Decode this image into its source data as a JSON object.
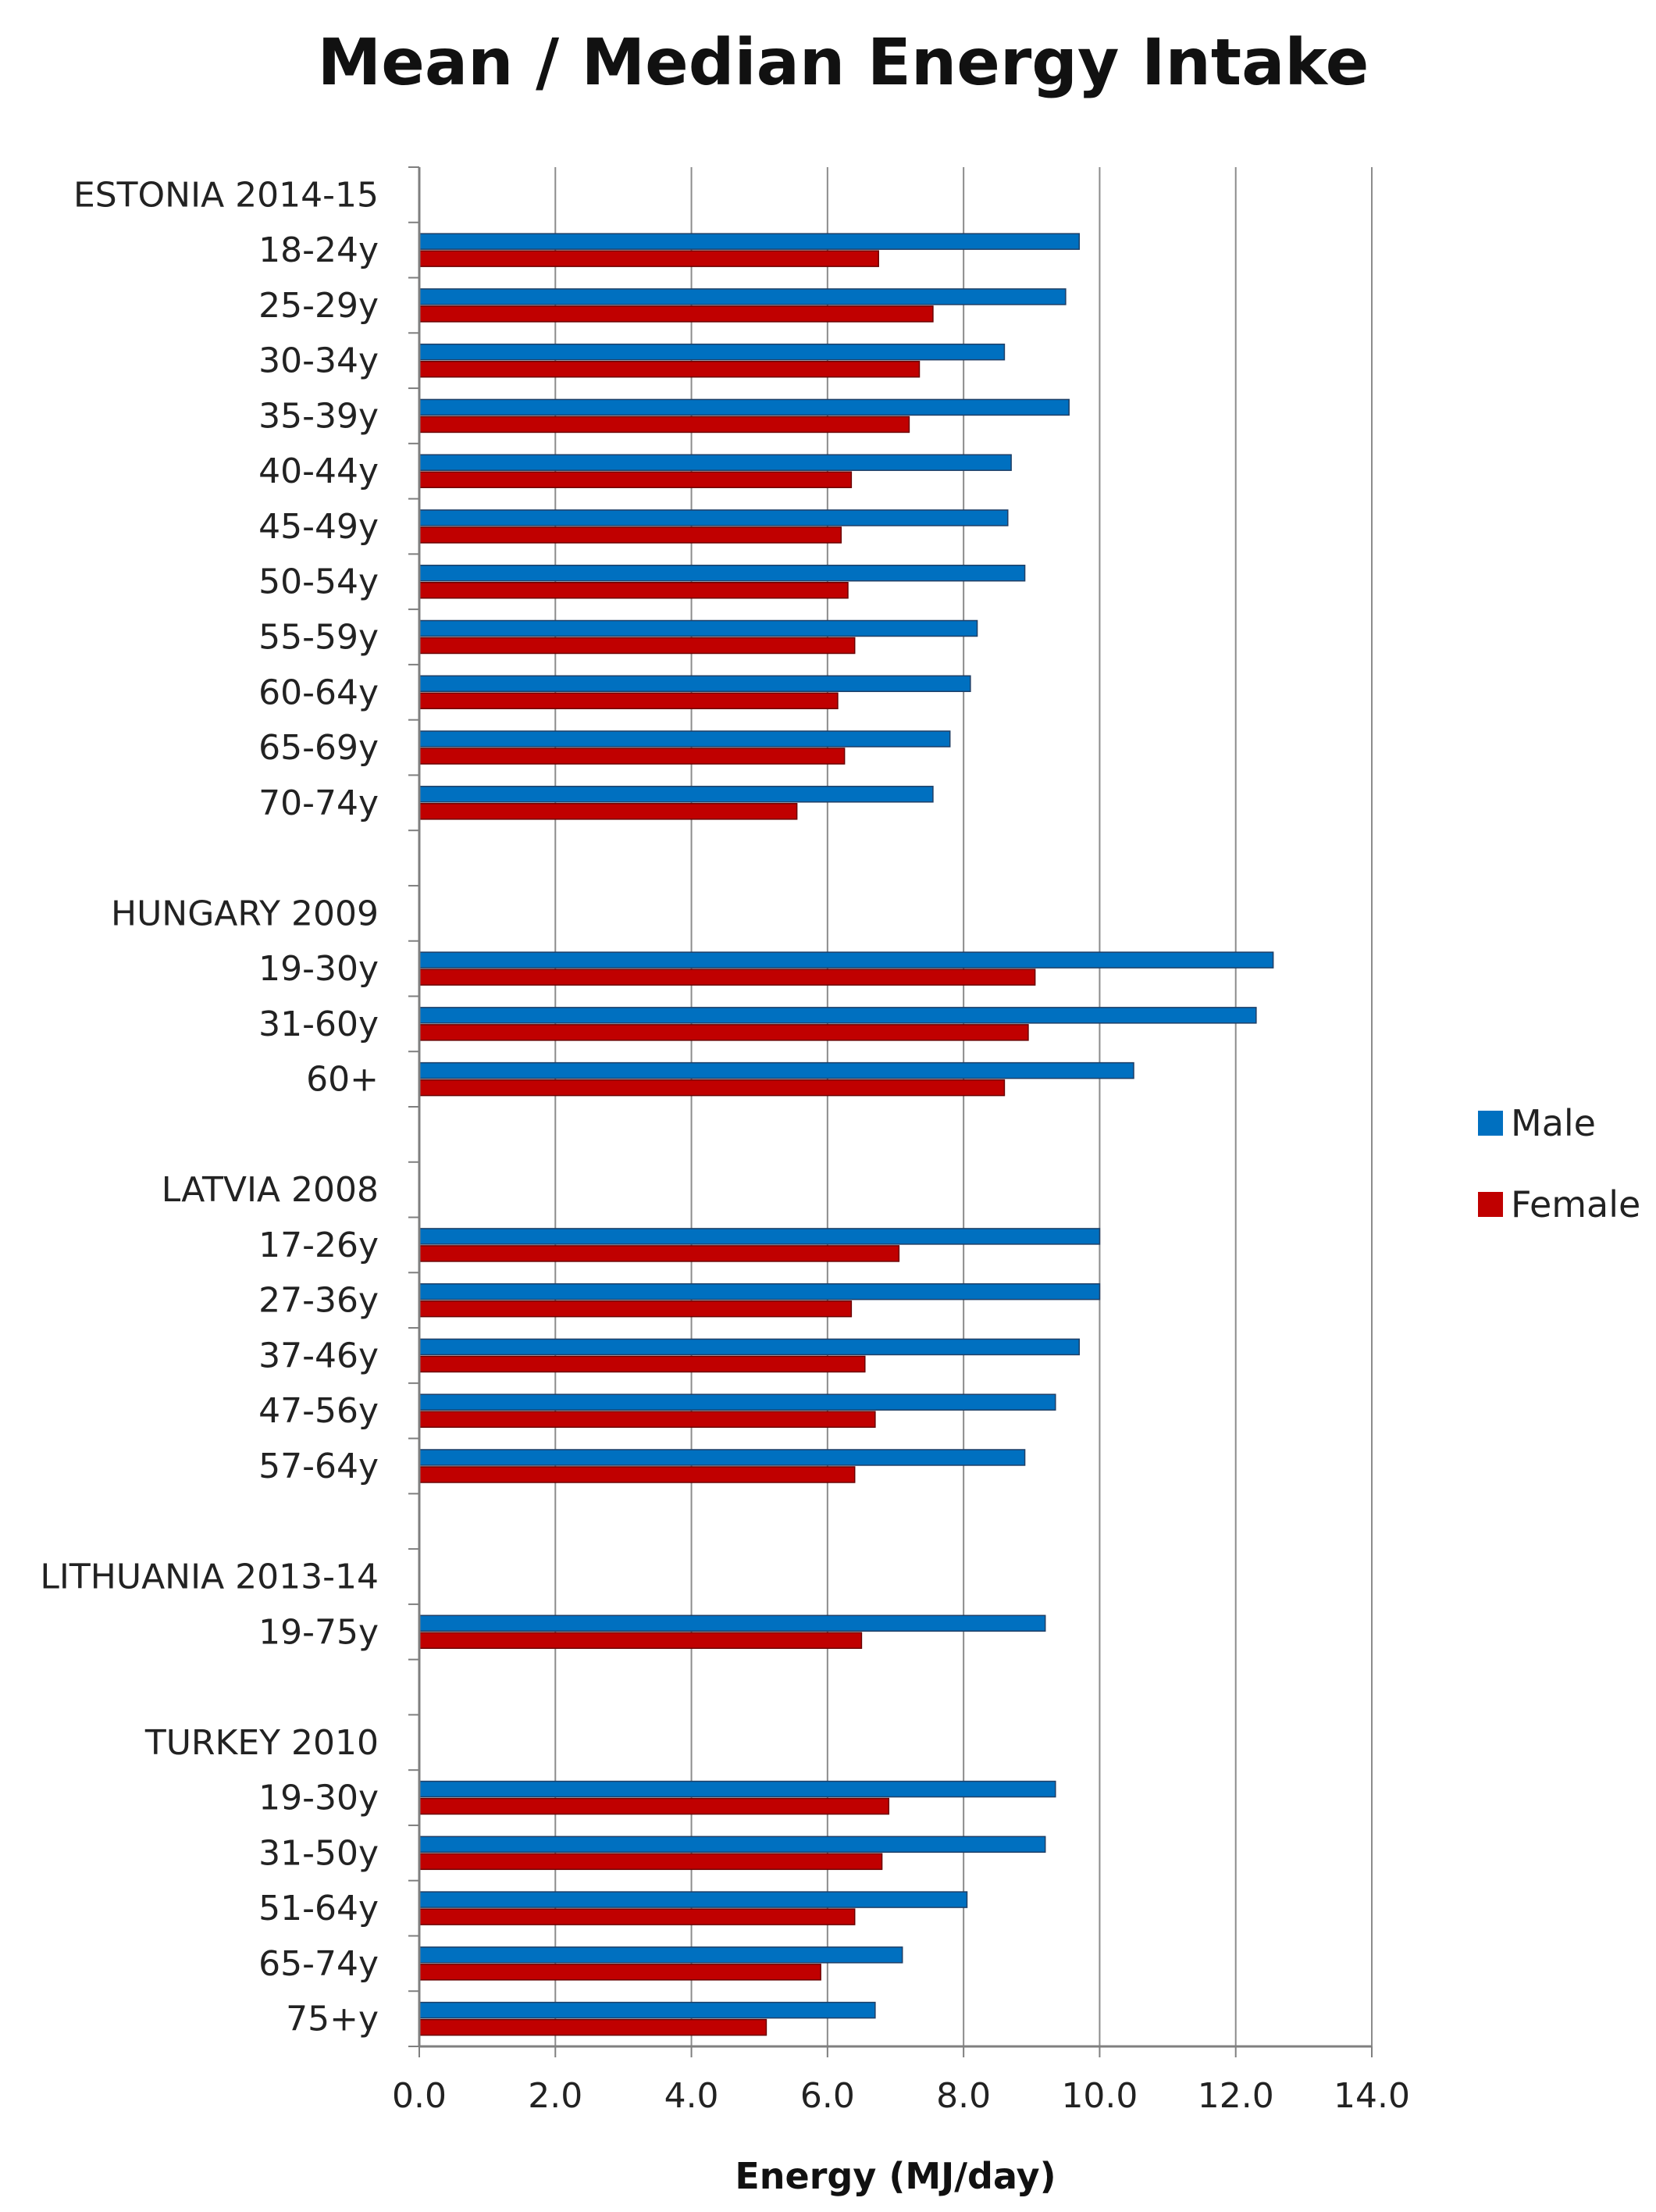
{
  "chart_data": {
    "type": "bar",
    "orientation": "horizontal",
    "title": "Mean / Median Energy Intake",
    "xlabel": "Energy (MJ/day)",
    "ylabel": "",
    "xlim": [
      0,
      14
    ],
    "x_ticks": [
      "0.0",
      "2.0",
      "4.0",
      "6.0",
      "8.0",
      "10.0",
      "12.0",
      "14.0"
    ],
    "grid": "vertical",
    "legend_position": "right",
    "categories": [
      "ESTONIA 2014-15",
      "18-24y",
      "25-29y",
      "30-34y",
      "35-39y",
      "40-44y",
      "45-49y",
      "50-54y",
      "55-59y",
      "60-64y",
      "65-69y",
      "70-74y",
      "",
      "HUNGARY 2009",
      "19-30y",
      "31-60y",
      "60+",
      "",
      "LATVIA 2008",
      "17-26y",
      "27-36y",
      "37-46y",
      "47-56y",
      "57-64y",
      "",
      "LITHUANIA 2013-14",
      "19-75y",
      "",
      "TURKEY 2010",
      "19-30y",
      "31-50y",
      "51-64y",
      "65-74y",
      "75+y"
    ],
    "series": [
      {
        "name": "Male",
        "color": "#0070C0",
        "values": [
          null,
          9.7,
          9.5,
          8.6,
          9.55,
          8.7,
          8.65,
          8.9,
          8.2,
          8.1,
          7.8,
          7.55,
          null,
          null,
          12.55,
          12.3,
          10.5,
          null,
          null,
          10.0,
          10.0,
          9.7,
          9.35,
          8.9,
          null,
          null,
          9.2,
          null,
          null,
          9.35,
          9.2,
          8.05,
          7.1,
          6.7
        ]
      },
      {
        "name": "Female",
        "color": "#C00000",
        "values": [
          null,
          6.75,
          7.55,
          7.35,
          7.2,
          6.35,
          6.2,
          6.3,
          6.4,
          6.15,
          6.25,
          5.55,
          null,
          null,
          9.05,
          8.95,
          8.6,
          null,
          null,
          7.05,
          6.35,
          6.55,
          6.7,
          6.4,
          null,
          null,
          6.5,
          null,
          null,
          6.9,
          6.8,
          6.4,
          5.9,
          5.1
        ]
      }
    ]
  }
}
